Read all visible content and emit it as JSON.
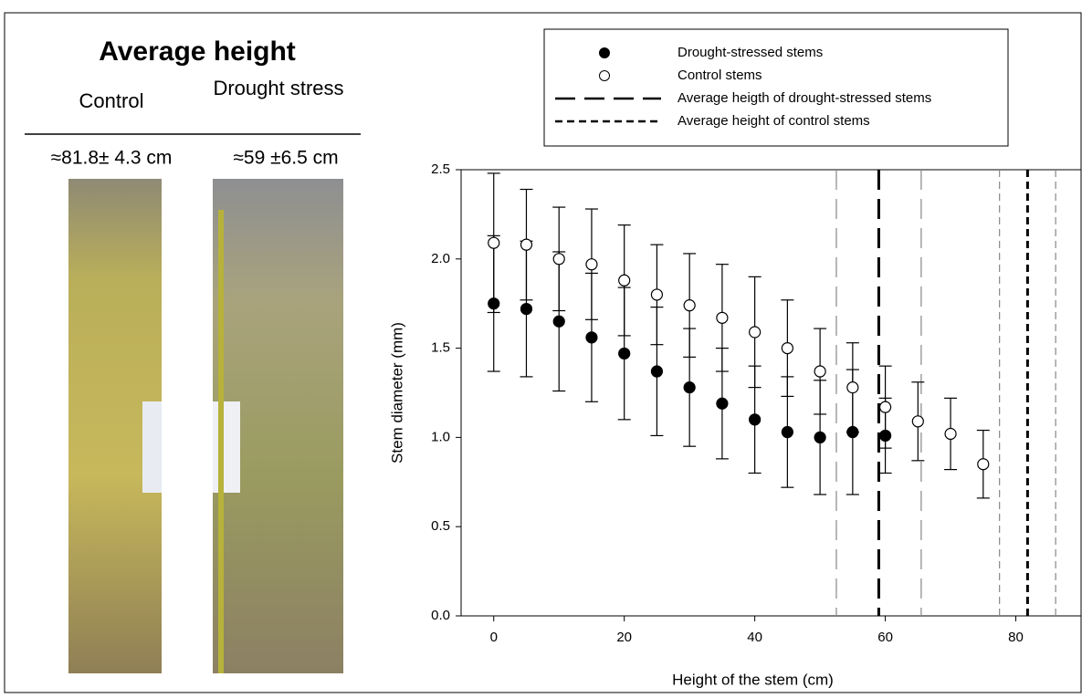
{
  "panel": {
    "title": "Average height",
    "columns": [
      "Control",
      "Drought stress"
    ],
    "heights": [
      "≈81.8± 4.3 cm",
      "≈59 ±6.5 cm"
    ]
  },
  "chart_data": {
    "type": "scatter",
    "x_label": "Height of the stem (cm)",
    "y_label": "Stem diameter (mm)",
    "xlim": [
      -5,
      90
    ],
    "ylim": [
      0,
      2.5
    ],
    "xticks": [
      0,
      20,
      40,
      60,
      80
    ],
    "yticks": [
      {
        "value": 0,
        "label": "0.0"
      },
      0.5,
      {
        "value": 1,
        "label": "1.0"
      },
      1.5,
      {
        "value": 2,
        "label": "2.0"
      },
      2.5
    ],
    "series": [
      {
        "name": "Drought-stressed stems",
        "color": "#000000",
        "marker": "filled",
        "x": [
          0,
          5,
          10,
          15,
          20,
          25,
          30,
          35,
          40,
          45,
          50,
          55,
          60
        ],
        "values": [
          1.75,
          1.72,
          1.65,
          1.56,
          1.47,
          1.37,
          1.28,
          1.19,
          1.1,
          1.03,
          1.0,
          1.03,
          1.01
        ],
        "errors": [
          0.38,
          0.38,
          0.39,
          0.36,
          0.37,
          0.36,
          0.33,
          0.31,
          0.3,
          0.31,
          0.32,
          0.35,
          0.21
        ]
      },
      {
        "name": "Control stems",
        "color": "#000000",
        "marker": "open",
        "x": [
          0,
          5,
          10,
          15,
          20,
          25,
          30,
          35,
          40,
          45,
          50,
          55,
          60,
          65,
          70,
          75
        ],
        "values": [
          2.09,
          2.08,
          2.0,
          1.97,
          1.88,
          1.8,
          1.74,
          1.67,
          1.59,
          1.5,
          1.37,
          1.28,
          1.17,
          1.09,
          1.02,
          0.85
        ],
        "errors": [
          0.39,
          0.31,
          0.29,
          0.31,
          0.31,
          0.28,
          0.29,
          0.3,
          0.31,
          0.27,
          0.24,
          0.25,
          0.23,
          0.22,
          0.2,
          0.19
        ]
      }
    ],
    "reference_lines": [
      {
        "name": "Average heigth of drought-stressed stems",
        "value": 59,
        "sd": 6.5,
        "dash": "long"
      },
      {
        "name": "Average height of control stems",
        "value": 81.8,
        "sd": 4.3,
        "dash": "short"
      }
    ]
  }
}
